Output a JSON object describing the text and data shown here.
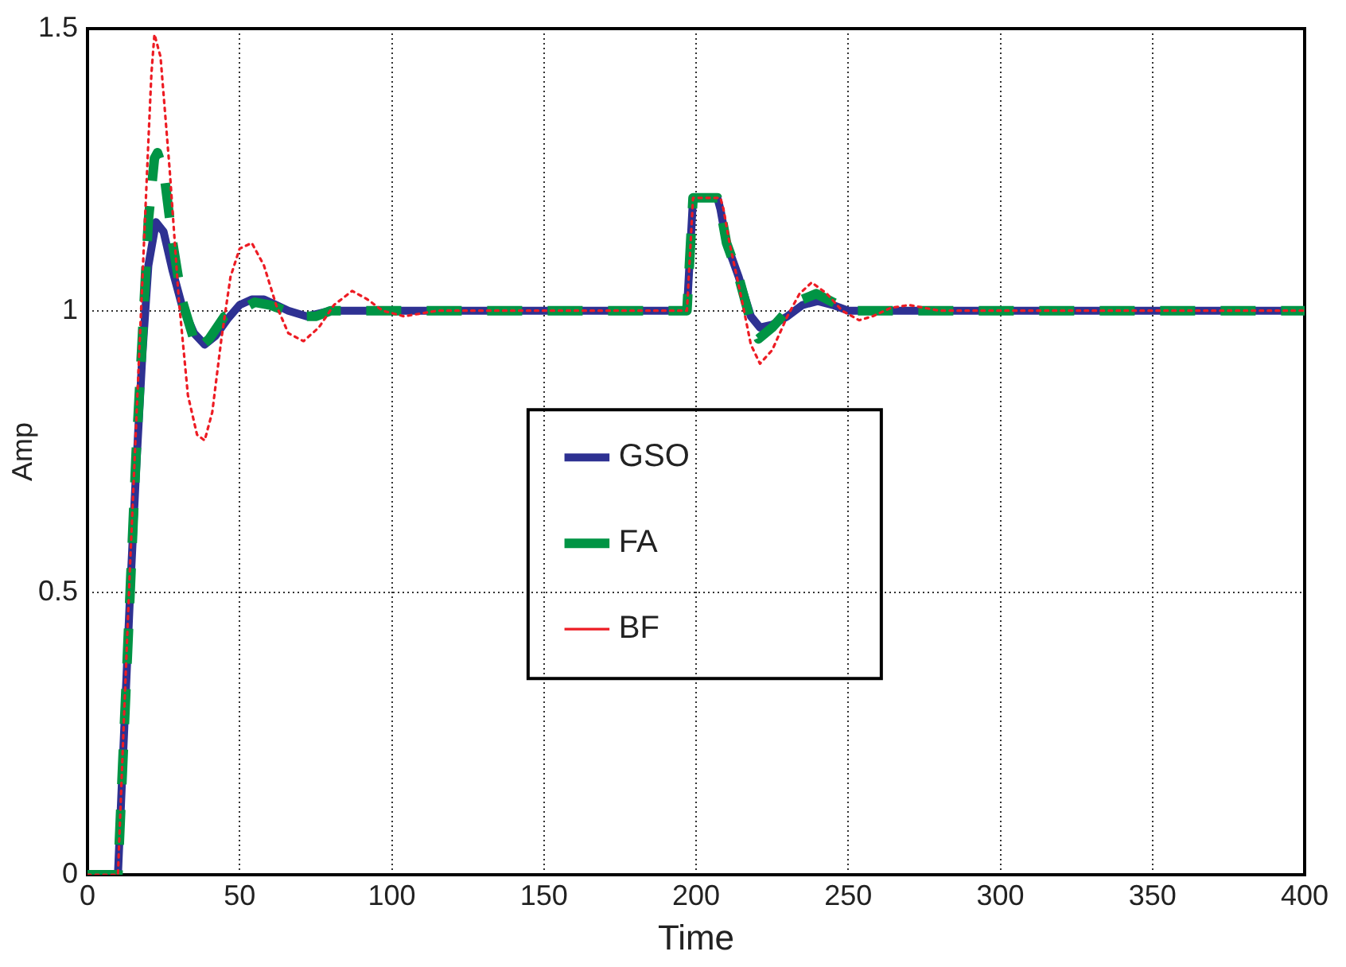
{
  "chart_data": {
    "type": "line",
    "xlabel": "Time",
    "ylabel": "Amp",
    "xlim": [
      0,
      400
    ],
    "xticks": [
      0,
      50,
      100,
      150,
      200,
      250,
      300,
      350,
      400
    ],
    "ylim": [
      0,
      1.5
    ],
    "yticks": [
      0,
      0.5,
      1,
      1.5
    ],
    "grid": true,
    "legend": "center",
    "marker": "none",
    "series": [
      {
        "name": "GSO",
        "color": "#2e3192",
        "line_style": "solid",
        "x": [
          0,
          10,
          12,
          14,
          16,
          18,
          20,
          22.5,
          25,
          28,
          31,
          35,
          38.5,
          42,
          46,
          50,
          54,
          58,
          62,
          66,
          72,
          80,
          90,
          100,
          150,
          196,
          197,
          199,
          207,
          208,
          210,
          214,
          218,
          221,
          225,
          230,
          235,
          240,
          245,
          250,
          260,
          300,
          400
        ],
        "values": [
          0,
          0,
          0.25,
          0.5,
          0.72,
          0.92,
          1.08,
          1.157,
          1.14,
          1.07,
          1.01,
          0.96,
          0.94,
          0.955,
          0.985,
          1.01,
          1.02,
          1.02,
          1.01,
          1.0,
          0.99,
          1.0,
          1.0,
          1.0,
          1.0,
          1.0,
          1.0,
          1.2,
          1.2,
          1.18,
          1.12,
          1.06,
          0.99,
          0.97,
          0.975,
          0.99,
          1.01,
          1.017,
          1.01,
          1.0,
          1.0,
          1.0,
          1.0
        ]
      },
      {
        "name": "FA",
        "color": "#009444",
        "line_style": "dashed",
        "x": [
          0,
          10,
          12,
          14,
          16,
          18,
          20,
          22,
          23,
          25,
          28,
          31,
          36,
          40,
          45,
          50,
          55,
          60,
          65,
          70,
          75,
          80,
          100,
          150,
          196,
          197,
          199,
          207,
          208,
          210,
          214,
          218,
          220.5,
          225,
          230,
          235,
          239.5,
          245,
          250,
          260,
          300,
          400
        ],
        "values": [
          0,
          0,
          0.25,
          0.5,
          0.75,
          0.95,
          1.16,
          1.27,
          1.28,
          1.25,
          1.12,
          1.02,
          0.93,
          0.95,
          0.99,
          1.0,
          1.015,
          1.01,
          1.0,
          0.99,
          0.99,
          1.0,
          1.0,
          1.0,
          1.0,
          1.0,
          1.2,
          1.2,
          1.18,
          1.12,
          1.06,
          0.98,
          0.95,
          0.97,
          1.0,
          1.02,
          1.03,
          1.015,
          1.0,
          1.0,
          1.0,
          1.0
        ]
      },
      {
        "name": "BF",
        "color": "#ed1c24",
        "line_style": "dotted",
        "x": [
          0,
          10,
          12,
          14,
          16,
          18,
          20,
          21,
          22,
          24,
          27,
          30,
          33,
          36,
          38.5,
          41,
          44,
          47,
          50,
          54,
          58,
          62,
          66,
          71,
          76,
          81,
          87,
          92,
          97,
          104,
          115,
          150,
          196,
          197,
          199,
          208,
          209,
          211,
          215,
          218,
          221,
          225,
          230,
          234,
          238,
          243,
          248,
          253.6,
          258,
          264,
          270,
          280,
          300,
          400
        ],
        "values": [
          0,
          0,
          0.28,
          0.55,
          0.8,
          1.05,
          1.3,
          1.42,
          1.49,
          1.45,
          1.25,
          1.02,
          0.85,
          0.78,
          0.77,
          0.82,
          0.95,
          1.06,
          1.11,
          1.12,
          1.08,
          1.01,
          0.96,
          0.946,
          0.97,
          1.01,
          1.035,
          1.02,
          1.0,
          0.99,
          1.0,
          1.0,
          1.0,
          1.0,
          1.2,
          1.2,
          1.18,
          1.12,
          1.02,
          0.94,
          0.906,
          0.93,
          0.99,
          1.03,
          1.05,
          1.03,
          1.0,
          0.983,
          0.99,
          1.005,
          1.01,
          1.0,
          1.0,
          1.0
        ]
      }
    ]
  }
}
